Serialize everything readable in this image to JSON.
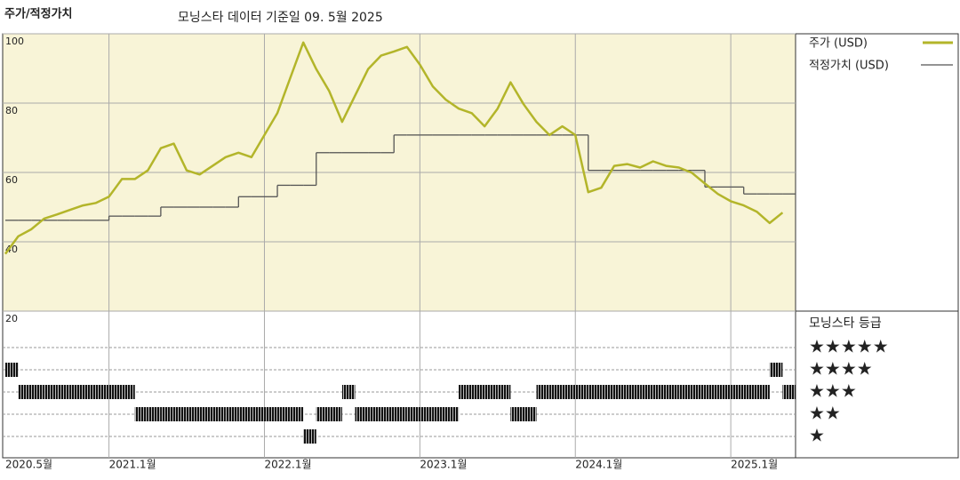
{
  "chart_data": {
    "type": "line",
    "title": "주가/적정가치",
    "subtitle": "모닝스타 데이터 기준일 09. 5월 2025",
    "x": [
      "2020-05",
      "2020-06",
      "2020-07",
      "2020-08",
      "2020-09",
      "2020-10",
      "2020-11",
      "2020-12",
      "2021-01",
      "2021-02",
      "2021-03",
      "2021-04",
      "2021-05",
      "2021-06",
      "2021-07",
      "2021-08",
      "2021-09",
      "2021-10",
      "2021-11",
      "2021-12",
      "2022-01",
      "2022-02",
      "2022-03",
      "2022-04",
      "2022-05",
      "2022-06",
      "2022-07",
      "2022-08",
      "2022-09",
      "2022-10",
      "2022-11",
      "2022-12",
      "2023-01",
      "2023-02",
      "2023-03",
      "2023-04",
      "2023-05",
      "2023-06",
      "2023-07",
      "2023-08",
      "2023-09",
      "2023-10",
      "2023-11",
      "2023-12",
      "2024-01",
      "2024-02",
      "2024-03",
      "2024-04",
      "2024-05",
      "2024-06",
      "2024-07",
      "2024-08",
      "2024-09",
      "2024-10",
      "2024-11",
      "2024-12",
      "2025-01",
      "2025-02",
      "2025-03",
      "2025-04",
      "2025-05"
    ],
    "series": [
      {
        "name": "주가 (USD)",
        "color": "#b3b52a",
        "style": "line",
        "values": [
          36.5,
          41.6,
          43.6,
          46.7,
          47.9,
          49.2,
          50.5,
          51.2,
          53.0,
          58.1,
          58.1,
          60.6,
          67.0,
          68.3,
          60.6,
          59.4,
          61.9,
          64.4,
          65.7,
          64.4,
          70.8,
          77.1,
          87.3,
          97.5,
          89.8,
          83.5,
          74.6,
          82.2,
          89.8,
          93.7,
          94.9,
          96.2,
          91.1,
          84.8,
          81.0,
          78.4,
          77.1,
          73.3,
          78.4,
          86.0,
          79.7,
          74.6,
          70.8,
          73.3,
          70.8,
          54.3,
          55.6,
          61.9,
          62.4,
          61.4,
          63.2,
          61.9,
          61.4,
          59.9,
          56.8,
          53.8,
          51.7,
          50.5,
          48.7,
          45.4,
          48.4
        ]
      },
      {
        "name": "적정가치 (USD)",
        "color": "#555555",
        "style": "step",
        "values": [
          46.2,
          46.2,
          46.2,
          46.2,
          46.2,
          46.2,
          46.2,
          46.2,
          47.4,
          47.4,
          47.4,
          47.4,
          50.0,
          50.0,
          50.0,
          50.0,
          50.0,
          50.0,
          53.0,
          53.0,
          53.0,
          56.3,
          56.3,
          56.3,
          65.7,
          65.7,
          65.7,
          65.7,
          65.7,
          65.7,
          70.8,
          70.8,
          70.8,
          70.8,
          70.8,
          70.8,
          70.8,
          70.8,
          70.8,
          70.8,
          70.8,
          70.8,
          70.8,
          70.8,
          70.8,
          60.6,
          60.6,
          60.6,
          60.6,
          60.6,
          60.6,
          60.6,
          60.6,
          60.6,
          55.8,
          55.8,
          55.8,
          53.8,
          53.8,
          53.8,
          53.8
        ]
      }
    ],
    "xlim": [
      "2020-05",
      "2025-06"
    ],
    "xticks": [
      {
        "value": "2020-05",
        "label": "2020.5월"
      },
      {
        "value": "2021-01",
        "label": "2021.1월"
      },
      {
        "value": "2022-01",
        "label": "2022.1월"
      },
      {
        "value": "2023-01",
        "label": "2023.1월"
      },
      {
        "value": "2024-01",
        "label": "2024.1월"
      },
      {
        "value": "2025-01",
        "label": "2025.1월"
      }
    ],
    "ylim": [
      20,
      100
    ],
    "yticks": [
      100,
      80,
      60,
      40,
      20
    ],
    "grid": true,
    "rating_title": "모닝스타 등급",
    "rating_labels": [
      "★★★★★",
      "★★★★",
      "★★★",
      "★★",
      "★"
    ],
    "ratings": [
      4,
      3,
      3,
      3,
      3,
      3,
      3,
      3,
      3,
      3,
      2,
      2,
      2,
      2,
      2,
      2,
      2,
      2,
      2,
      2,
      2,
      2,
      2,
      1,
      2,
      2,
      3,
      2,
      2,
      2,
      2,
      2,
      2,
      2,
      2,
      3,
      3,
      3,
      3,
      2,
      2,
      3,
      3,
      3,
      3,
      3,
      3,
      3,
      3,
      3,
      3,
      3,
      3,
      3,
      3,
      3,
      3,
      3,
      3,
      4,
      3
    ]
  }
}
